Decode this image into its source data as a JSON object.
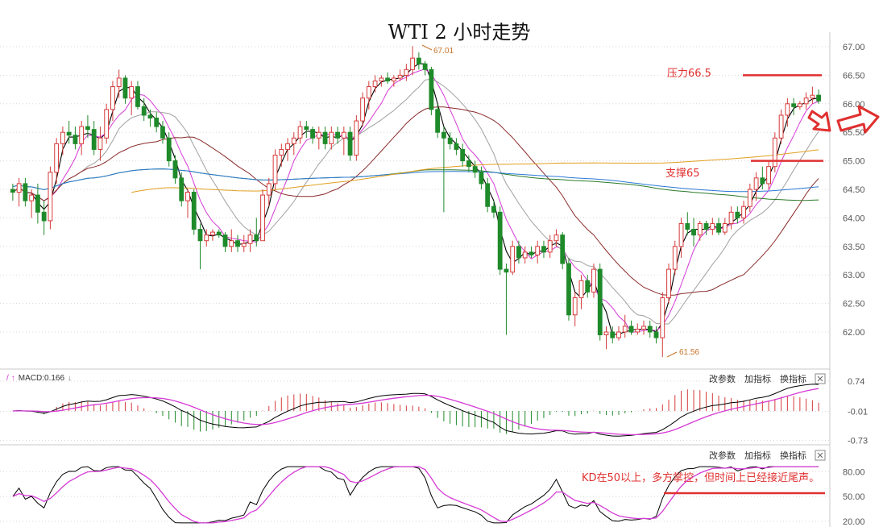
{
  "chart_data": {
    "type": "candlestick",
    "title": "WTI 2 小时走势",
    "y_ticks": [
      "67.00",
      "66.50",
      "66.00",
      "65.50",
      "65.00",
      "64.50",
      "64.00",
      "63.50",
      "63.00",
      "62.50",
      "62.00"
    ],
    "ylim": [
      61.5,
      67.2
    ],
    "high_label": "67.01",
    "low_label": "61.56",
    "resistance": {
      "label": "压力66.5",
      "value": 66.5
    },
    "support": {
      "label": "支撑65",
      "value": 65.0
    },
    "ohlc": [
      [
        64.5,
        64.6,
        64.3,
        64.45
      ],
      [
        64.45,
        64.7,
        64.2,
        64.6
      ],
      [
        64.6,
        64.7,
        64.2,
        64.3
      ],
      [
        64.3,
        64.5,
        64.0,
        64.4
      ],
      [
        64.4,
        64.6,
        63.9,
        64.1
      ],
      [
        64.1,
        64.3,
        63.7,
        63.95
      ],
      [
        63.95,
        64.9,
        63.8,
        64.8
      ],
      [
        64.8,
        65.4,
        64.6,
        65.3
      ],
      [
        65.3,
        65.6,
        65.1,
        65.5
      ],
      [
        65.5,
        65.7,
        65.3,
        65.45
      ],
      [
        65.45,
        65.6,
        65.2,
        65.3
      ],
      [
        65.3,
        65.7,
        65.1,
        65.6
      ],
      [
        65.6,
        65.8,
        65.4,
        65.55
      ],
      [
        65.55,
        65.7,
        65.1,
        65.2
      ],
      [
        65.2,
        65.6,
        65.0,
        65.4
      ],
      [
        65.4,
        66.0,
        65.3,
        65.9
      ],
      [
        65.9,
        66.4,
        65.7,
        66.3
      ],
      [
        66.3,
        66.6,
        66.1,
        66.45
      ],
      [
        66.45,
        66.5,
        66.0,
        66.1
      ],
      [
        66.1,
        66.4,
        65.8,
        66.3
      ],
      [
        66.3,
        66.4,
        65.9,
        65.95
      ],
      [
        65.95,
        66.1,
        65.7,
        65.8
      ],
      [
        65.8,
        65.9,
        65.6,
        65.75
      ],
      [
        65.75,
        65.85,
        65.5,
        65.6
      ],
      [
        65.6,
        65.7,
        65.3,
        65.4
      ],
      [
        65.4,
        65.5,
        64.9,
        65.0
      ],
      [
        65.0,
        65.1,
        64.6,
        64.7
      ],
      [
        64.7,
        64.8,
        64.2,
        64.3
      ],
      [
        64.3,
        64.5,
        64.0,
        64.45
      ],
      [
        64.45,
        64.5,
        63.7,
        63.8
      ],
      [
        63.8,
        63.9,
        63.1,
        63.6
      ],
      [
        63.6,
        63.8,
        63.5,
        63.7
      ],
      [
        63.7,
        63.8,
        63.6,
        63.75
      ],
      [
        63.75,
        63.8,
        63.65,
        63.7
      ],
      [
        63.7,
        63.75,
        63.4,
        63.5
      ],
      [
        63.5,
        63.8,
        63.4,
        63.6
      ],
      [
        63.6,
        63.7,
        63.4,
        63.5
      ],
      [
        63.5,
        63.7,
        63.4,
        63.55
      ],
      [
        63.55,
        63.8,
        63.4,
        63.7
      ],
      [
        63.7,
        64.0,
        63.5,
        63.6
      ],
      [
        63.6,
        64.5,
        63.6,
        64.4
      ],
      [
        64.4,
        64.7,
        64.2,
        64.6
      ],
      [
        64.6,
        65.2,
        64.5,
        65.1
      ],
      [
        65.1,
        65.3,
        64.9,
        65.2
      ],
      [
        65.2,
        65.4,
        65.0,
        65.3
      ],
      [
        65.3,
        65.5,
        65.1,
        65.4
      ],
      [
        65.4,
        65.7,
        65.3,
        65.6
      ],
      [
        65.6,
        65.7,
        65.4,
        65.55
      ],
      [
        65.55,
        65.6,
        65.3,
        65.4
      ],
      [
        65.4,
        65.6,
        65.2,
        65.5
      ],
      [
        65.5,
        65.6,
        65.2,
        65.3
      ],
      [
        65.3,
        65.6,
        65.2,
        65.5
      ],
      [
        65.5,
        65.6,
        65.3,
        65.4
      ],
      [
        65.4,
        65.6,
        65.1,
        65.5
      ],
      [
        65.5,
        65.6,
        65.0,
        65.1
      ],
      [
        65.1,
        65.8,
        65.0,
        65.7
      ],
      [
        65.7,
        66.2,
        65.6,
        66.1
      ],
      [
        66.1,
        66.4,
        65.9,
        66.3
      ],
      [
        66.3,
        66.5,
        66.2,
        66.4
      ],
      [
        66.4,
        66.5,
        66.3,
        66.45
      ],
      [
        66.45,
        66.55,
        66.35,
        66.4
      ],
      [
        66.4,
        66.5,
        66.3,
        66.45
      ],
      [
        66.45,
        66.6,
        66.4,
        66.5
      ],
      [
        66.5,
        66.7,
        66.4,
        66.6
      ],
      [
        66.6,
        67.01,
        66.5,
        66.8
      ],
      [
        66.8,
        66.9,
        66.6,
        66.7
      ],
      [
        66.7,
        66.75,
        66.5,
        66.6
      ],
      [
        66.6,
        66.65,
        65.8,
        65.9
      ],
      [
        65.9,
        66.0,
        65.4,
        65.5
      ],
      [
        65.5,
        65.6,
        64.1,
        65.4
      ],
      [
        65.4,
        65.5,
        65.2,
        65.3
      ],
      [
        65.3,
        65.4,
        65.1,
        65.2
      ],
      [
        65.2,
        65.3,
        64.9,
        65.0
      ],
      [
        65.0,
        65.1,
        64.8,
        64.9
      ],
      [
        64.9,
        65.0,
        64.7,
        64.8
      ],
      [
        64.8,
        64.9,
        64.5,
        64.6
      ],
      [
        64.6,
        64.7,
        64.1,
        64.2
      ],
      [
        64.2,
        64.3,
        64.0,
        64.1
      ],
      [
        64.1,
        64.2,
        63.0,
        63.1
      ],
      [
        63.1,
        63.2,
        61.95,
        63.05
      ],
      [
        63.05,
        63.6,
        63.0,
        63.5
      ],
      [
        63.5,
        63.6,
        63.2,
        63.3
      ],
      [
        63.3,
        63.5,
        63.2,
        63.4
      ],
      [
        63.4,
        63.5,
        63.3,
        63.35
      ],
      [
        63.35,
        63.6,
        63.2,
        63.5
      ],
      [
        63.5,
        63.6,
        63.3,
        63.4
      ],
      [
        63.4,
        63.7,
        63.3,
        63.6
      ],
      [
        63.6,
        63.8,
        63.5,
        63.7
      ],
      [
        63.7,
        63.75,
        63.1,
        63.2
      ],
      [
        63.2,
        63.3,
        62.2,
        62.3
      ],
      [
        62.3,
        62.7,
        62.1,
        62.6
      ],
      [
        62.6,
        63.0,
        62.4,
        62.9
      ],
      [
        62.9,
        63.0,
        62.6,
        62.7
      ],
      [
        62.7,
        63.2,
        62.6,
        63.1
      ],
      [
        63.1,
        63.2,
        61.85,
        61.95
      ],
      [
        61.95,
        62.1,
        61.7,
        62.0
      ],
      [
        62.0,
        62.1,
        61.8,
        61.9
      ],
      [
        61.9,
        62.1,
        61.85,
        62.0
      ],
      [
        62.0,
        62.3,
        61.9,
        62.1
      ],
      [
        62.1,
        62.2,
        61.95,
        62.0
      ],
      [
        62.0,
        62.15,
        61.95,
        62.05
      ],
      [
        62.05,
        62.2,
        61.95,
        62.1
      ],
      [
        62.1,
        62.2,
        61.9,
        62.0
      ],
      [
        62.0,
        62.1,
        61.8,
        61.9
      ],
      [
        61.9,
        62.7,
        61.56,
        62.6
      ],
      [
        62.6,
        63.2,
        62.5,
        63.1
      ],
      [
        63.1,
        63.6,
        63.0,
        63.5
      ],
      [
        63.5,
        64.0,
        63.3,
        63.9
      ],
      [
        63.9,
        64.1,
        63.7,
        63.8
      ],
      [
        63.8,
        64.0,
        63.5,
        63.7
      ],
      [
        63.7,
        63.95,
        63.6,
        63.9
      ],
      [
        63.9,
        63.95,
        63.7,
        63.8
      ],
      [
        63.8,
        64.0,
        63.7,
        63.9
      ],
      [
        63.9,
        64.0,
        63.7,
        63.75
      ],
      [
        63.75,
        64.0,
        63.7,
        63.9
      ],
      [
        63.9,
        64.2,
        63.8,
        64.1
      ],
      [
        64.1,
        64.2,
        63.9,
        64.0
      ],
      [
        64.0,
        64.3,
        63.9,
        64.2
      ],
      [
        64.2,
        64.6,
        64.1,
        64.5
      ],
      [
        64.5,
        64.8,
        64.3,
        64.7
      ],
      [
        64.7,
        64.9,
        64.5,
        64.6
      ],
      [
        64.6,
        65.0,
        64.5,
        64.9
      ],
      [
        64.9,
        65.5,
        64.8,
        65.4
      ],
      [
        65.4,
        65.9,
        65.3,
        65.8
      ],
      [
        65.8,
        66.1,
        65.6,
        66.0
      ],
      [
        66.0,
        66.1,
        65.8,
        65.95
      ],
      [
        65.95,
        66.05,
        65.9,
        66.0
      ],
      [
        66.0,
        66.2,
        65.9,
        66.1
      ],
      [
        66.1,
        66.3,
        66.0,
        66.15
      ],
      [
        66.15,
        66.25,
        66.0,
        66.05
      ]
    ],
    "ma_colors": [
      "#000000",
      "#d63ad6",
      "#a0a0a0",
      "#8b2a2a",
      "#2a7a2a",
      "#2a7ad6",
      "#e0a020"
    ],
    "macd": {
      "label": "MACD:0.166",
      "y_ticks": [
        "0.74",
        "-0.01",
        "-0.73"
      ],
      "ylim": [
        -0.8,
        0.8
      ]
    },
    "kd": {
      "y_ticks": [
        "80.00",
        "50.00",
        "20.00"
      ],
      "ylim": [
        15,
        90
      ],
      "annotation": "KD在50以上，多方掌控，但时间上已经接近尾声。"
    },
    "panel_buttons": [
      "改参数",
      "加指标",
      "换指标"
    ],
    "colors": {
      "up": "#d63a3a",
      "down": "#1f8a2a",
      "annotation": "#e03030",
      "grid": "#d8d8d8"
    }
  }
}
